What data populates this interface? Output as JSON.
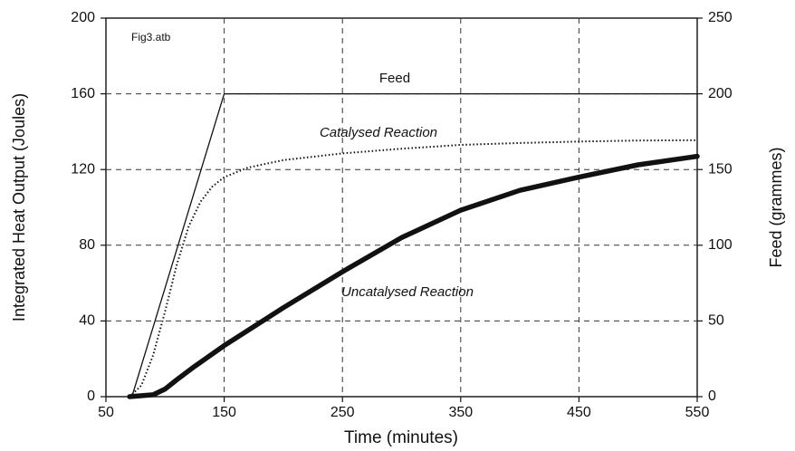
{
  "chart_data": {
    "type": "line",
    "xlabel": "Time (minutes)",
    "ylabel": "Integrated Heat Output (Joules)",
    "y2label": "Feed (grammes)",
    "annotation": "Fig3.atb",
    "xlim": [
      50,
      550
    ],
    "xticks": [
      50,
      150,
      250,
      350,
      450,
      550
    ],
    "ylim": [
      0,
      200
    ],
    "yticks": [
      0,
      40,
      80,
      120,
      160,
      200
    ],
    "y2lim": [
      0,
      250
    ],
    "y2ticks": [
      0,
      50,
      100,
      150,
      200,
      250
    ],
    "grid": true,
    "series": [
      {
        "name": "Feed",
        "color": "#111",
        "style": "solid",
        "axis": "y2",
        "x": [
          72,
          150,
          550
        ],
        "values": [
          0,
          200,
          200
        ]
      },
      {
        "name": "Catalysed Reaction",
        "color": "#111",
        "style": "dotted",
        "x": [
          70,
          80,
          90,
          100,
          110,
          120,
          130,
          140,
          150,
          170,
          200,
          250,
          300,
          350,
          400,
          450,
          500,
          550
        ],
        "values": [
          0,
          6,
          22,
          45,
          70,
          90,
          103,
          111,
          116,
          121,
          125,
          128.5,
          131,
          133,
          134,
          134.8,
          135.3,
          135.5
        ]
      },
      {
        "name": "Uncatalysed Reaction",
        "color": "#111",
        "style": "thick",
        "x": [
          70,
          90,
          100,
          110,
          125,
          150,
          200,
          250,
          300,
          350,
          400,
          450,
          500,
          550
        ],
        "values": [
          0,
          1,
          4,
          9,
          16,
          27,
          47,
          66,
          84,
          98.5,
          109,
          116,
          122.5,
          127
        ]
      }
    ]
  }
}
